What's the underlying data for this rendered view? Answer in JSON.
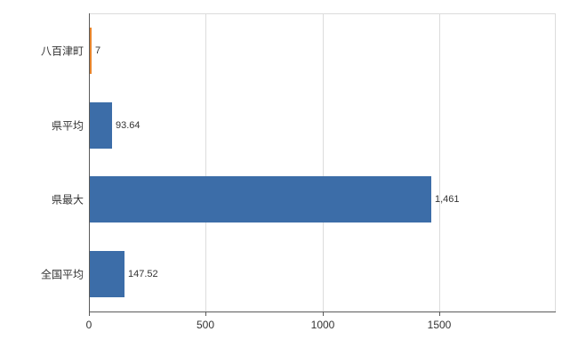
{
  "chart_data": {
    "type": "bar",
    "orientation": "horizontal",
    "title": "",
    "xlabel": "",
    "ylabel": "",
    "categories": [
      "八百津町",
      "県平均",
      "県最大",
      "全国平均"
    ],
    "values": [
      7,
      93.64,
      1461,
      147.52
    ],
    "value_labels": [
      "7",
      "93.64",
      "1,461",
      "147.52"
    ],
    "bar_colors": [
      "#e8842b",
      "#3c6da8",
      "#3c6da8",
      "#3c6da8"
    ],
    "x_ticks": [
      0,
      500,
      1000,
      1500
    ],
    "x_tick_labels": [
      "0",
      "500",
      "1000",
      "1500"
    ],
    "xlim": [
      0,
      2000
    ],
    "grid": true,
    "legend": false
  },
  "colors": {
    "bar_default": "#3c6da8",
    "bar_highlight": "#e8842b",
    "grid": "#dcdcdc",
    "axis": "#5a5a5a",
    "text": "#333333"
  }
}
